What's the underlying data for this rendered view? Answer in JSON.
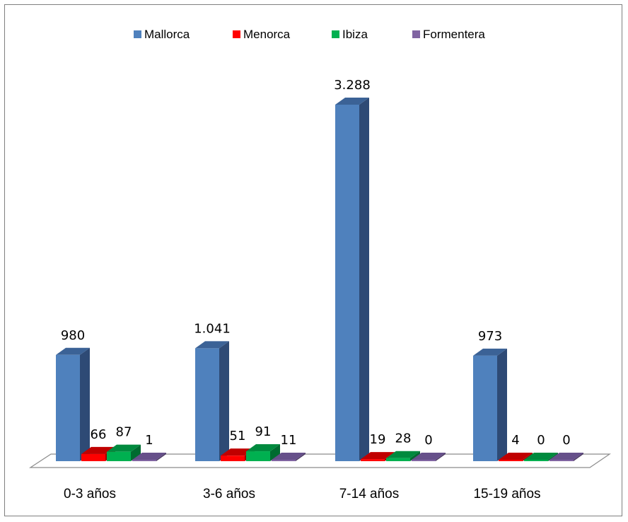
{
  "chart_data": {
    "type": "bar",
    "categories": [
      "0-3 años",
      "3-6 años",
      "7-14 años",
      "15-19 años"
    ],
    "series": [
      {
        "name": "Mallorca",
        "color": "#4F81BD",
        "side_color": "#2E4A75",
        "top_color": "#3B6296",
        "values": [
          980,
          1041,
          3288,
          973
        ],
        "labels": [
          "980",
          "1.041",
          "3.288",
          "973"
        ]
      },
      {
        "name": "Menorca",
        "color": "#FF0000",
        "side_color": "#9E0000",
        "top_color": "#C00000",
        "values": [
          66,
          51,
          19,
          4
        ],
        "labels": [
          "66",
          "51",
          "19",
          "4"
        ]
      },
      {
        "name": "Ibiza",
        "color": "#00B050",
        "side_color": "#006B30",
        "top_color": "#008A3E",
        "values": [
          87,
          91,
          28,
          0
        ],
        "labels": [
          "87",
          "91",
          "28",
          "0"
        ]
      },
      {
        "name": "Formentera",
        "color": "#8064A2",
        "side_color": "#4E3C66",
        "top_color": "#66508A",
        "values": [
          1,
          11,
          0,
          0
        ],
        "labels": [
          "1",
          "11",
          "0",
          "0"
        ]
      }
    ],
    "legend_position": "top",
    "ylim": [
      0,
      3288
    ],
    "grid": false
  }
}
